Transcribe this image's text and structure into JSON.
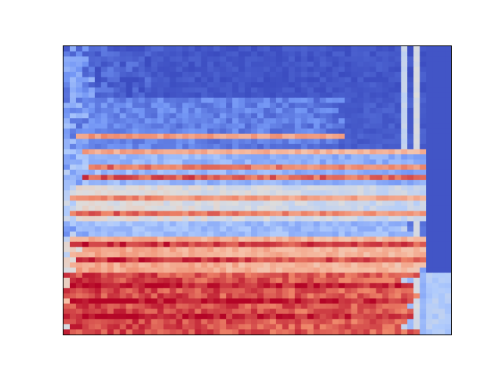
{
  "chart_data": {
    "type": "heatmap",
    "colormap": "coolwarm",
    "colormap_stops": [
      "#3b4cc0",
      "#7396f5",
      "#b0cbfc",
      "#dddcdc",
      "#f6bfa6",
      "#ee8468",
      "#b40426"
    ],
    "value_range": [
      0,
      1
    ],
    "axes": {
      "frame": true,
      "ticks": false,
      "tick_labels": false,
      "grid": false,
      "legend": false,
      "colorbar": false
    },
    "title": "",
    "xlabel": "",
    "ylabel": "",
    "n_rows": 56,
    "n_cols": 62,
    "row_bands": [
      {
        "rows": [
          0,
          10
        ],
        "base": 0.06,
        "tail": 0.0,
        "start": 0.06,
        "end": 0.25
      },
      {
        "rows": [
          10,
          20
        ],
        "base": 0.14,
        "tail": 0.05,
        "start": 0.04,
        "end": 0.72
      },
      {
        "rows": [
          20,
          27
        ],
        "base": 0.28,
        "tail": 0.12,
        "start": 0.04,
        "end": 0.96
      },
      {
        "rows": [
          27,
          34
        ],
        "base": 0.52,
        "tail": 0.2,
        "start": 0.03,
        "end": 0.97
      },
      {
        "rows": [
          34,
          37
        ],
        "base": 0.3,
        "tail": 0.22,
        "start": 0.05,
        "end": 0.9
      },
      {
        "rows": [
          37,
          44
        ],
        "base": 0.74,
        "tail": 0.55,
        "start": 0.02,
        "end": 0.96
      },
      {
        "rows": [
          44,
          56
        ],
        "base": 0.92,
        "tail": 0.78,
        "start": 0.0,
        "end": 0.91
      }
    ],
    "highlight_rows": [
      {
        "row": 17,
        "value": 0.78
      },
      {
        "row": 20,
        "value": 0.74
      },
      {
        "row": 23,
        "value": 0.85
      },
      {
        "row": 25,
        "value": 0.9
      },
      {
        "row": 29,
        "value": 0.82
      },
      {
        "row": 32,
        "value": 0.88
      },
      {
        "row": 38,
        "value": 0.96
      },
      {
        "row": 41,
        "value": 0.95
      },
      {
        "row": 46,
        "value": 0.99
      },
      {
        "row": 49,
        "value": 1.0
      },
      {
        "row": 52,
        "value": 0.98
      }
    ],
    "column_bands": [
      {
        "cols": [
          54,
          55
        ],
        "value": 0.38,
        "label": "vertical-stripe"
      },
      {
        "cols": [
          56,
          57
        ],
        "value": 0.45,
        "label": "vertical-stripe"
      },
      {
        "cols": [
          58,
          62
        ],
        "value": 0.0,
        "label": "right-edge-low"
      }
    ]
  }
}
